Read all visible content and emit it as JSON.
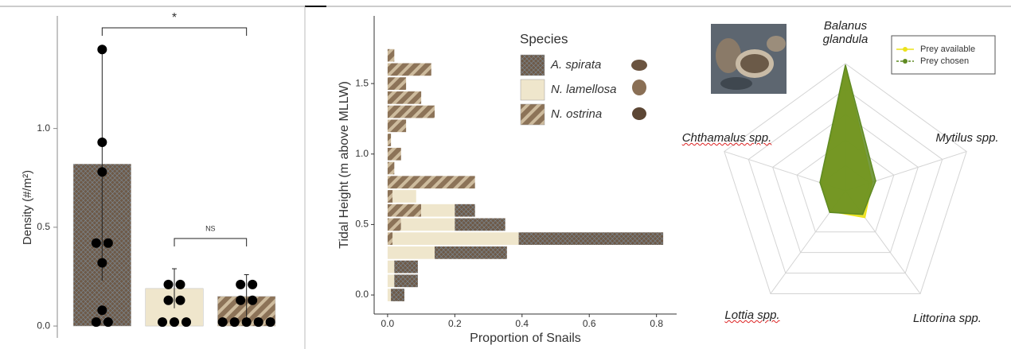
{
  "chart_data": [
    {
      "type": "bar",
      "y_label": "Density (#/m²)",
      "categories": [
        null,
        null,
        null
      ],
      "values": [
        0.82,
        0.19,
        0.15
      ],
      "errors": [
        0.59,
        0.1,
        0.11
      ],
      "points": [
        [
          1.4,
          0.93,
          0.78,
          0.42,
          0.42,
          0.32,
          0.08,
          0.02,
          0.02
        ],
        [
          0.21,
          0.21,
          0.13,
          0.13,
          0.02,
          0.02,
          0.02
        ],
        [
          0.21,
          0.21,
          0.13,
          0.13,
          0.02,
          0.02,
          0.02,
          0.02,
          0.02
        ]
      ],
      "colors": [
        "#6e5a48",
        "#efe6cc",
        "#8c7358"
      ],
      "patterns": [
        "crosshatch",
        "none",
        "stripes"
      ],
      "annotations": [
        "*",
        "NS"
      ],
      "ylim": [
        -0.06,
        1.57
      ],
      "yticks": [
        {
          "value": 0,
          "label": "0.0"
        },
        0.5,
        {
          "value": 1,
          "label": "1.0"
        }
      ]
    },
    {
      "type": "histogram",
      "orientation": "horizontal",
      "x_label": "Proportion of Snails",
      "y_label": "Tidal Height (m above MLLW)",
      "legend_title": "Species",
      "bins": [
        -0.05,
        0.05,
        0.15,
        0.25,
        0.35,
        0.45,
        0.55,
        0.65,
        0.75,
        0.85,
        0.95,
        1.05,
        1.15,
        1.25,
        1.35,
        1.45,
        1.55,
        1.65,
        1.75
      ],
      "series": [
        {
          "name": "A. spirata",
          "color": "#6e5a48",
          "pattern": "crosshatch",
          "values": [
            0.04,
            0.07,
            0.07,
            0.215,
            0.43,
            0.15,
            0.06,
            0,
            0,
            0,
            0,
            0,
            0,
            0,
            0,
            0,
            0,
            0
          ]
        },
        {
          "name": "N. lamellosa",
          "color": "#efe6cc",
          "pattern": "none",
          "values": [
            0.01,
            0.02,
            0.02,
            0.14,
            0.375,
            0.16,
            0.1,
            0.07,
            0,
            0,
            0,
            0,
            0,
            0,
            0,
            0,
            0,
            0
          ]
        },
        {
          "name": "N. ostrina",
          "color": "#8c7358",
          "pattern": "stripes",
          "values": [
            0,
            0,
            0,
            0,
            0.015,
            0.04,
            0.1,
            0.015,
            0.26,
            0.02,
            0.04,
            0.01,
            0.055,
            0.14,
            0.1,
            0.055,
            0.13,
            0.02
          ]
        }
      ],
      "xlim": [
        -0.04,
        0.86
      ],
      "xticks": [
        {
          "value": 0,
          "label": "0.0"
        },
        0.2,
        0.4,
        0.6,
        0.8
      ],
      "ylim": [
        -0.135,
        1.98
      ],
      "yticks": [
        {
          "value": 0,
          "label": "0.0"
        },
        0.5,
        {
          "value": 1,
          "label": "1.0"
        },
        1.5
      ]
    },
    {
      "type": "radar",
      "categories": [
        "Balanus glandula",
        "Mytilus spp.",
        "Littorina spp.",
        "Lottia spp.",
        "Chthamalus spp."
      ],
      "rlim": [
        0,
        1
      ],
      "series": [
        {
          "name": "Prey available",
          "color": "#ece21a",
          "values": [
            0.97,
            0.22,
            0.26,
            0.2,
            0.2
          ]
        },
        {
          "name": "Prey chosen",
          "color": "#5f8a22",
          "values": [
            0.99,
            0.25,
            0.23,
            0.21,
            0.21
          ]
        }
      ]
    }
  ]
}
